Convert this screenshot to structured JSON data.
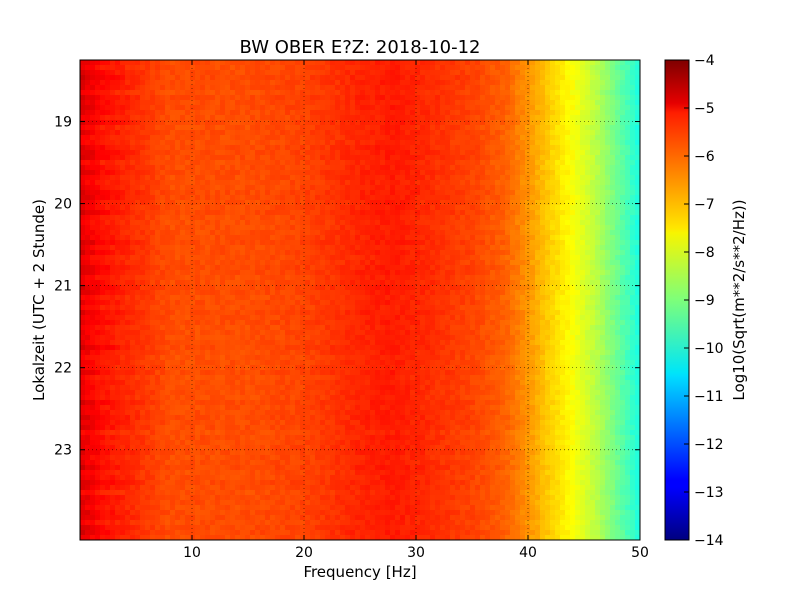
{
  "chart_data": {
    "type": "heatmap",
    "title": "BW OBER E?Z: 2018-10-12",
    "xlabel": "Frequency [Hz]",
    "ylabel": "Lokalzeit (UTC + 2 Stunde)",
    "xlim": [
      0,
      50
    ],
    "ylim": [
      18.25,
      24.1
    ],
    "y_inverted": true,
    "x_ticks": [
      10,
      20,
      30,
      40,
      50
    ],
    "x_tick_labels": [
      "10",
      "20",
      "30",
      "40",
      "50"
    ],
    "y_ticks": [
      19,
      20,
      21,
      22,
      23
    ],
    "y_tick_labels": [
      "19",
      "20",
      "21",
      "22",
      "23"
    ],
    "grid": true,
    "colormap": "jet",
    "colorbar": {
      "label": "Log10(Sqrt(m**2/s**2/Hz))",
      "range": [
        -14,
        -4
      ],
      "ticks": [
        -4,
        -5,
        -6,
        -7,
        -8,
        -9,
        -10,
        -11,
        -12,
        -13,
        -14
      ],
      "tick_labels": [
        "−4",
        "−5",
        "−6",
        "−7",
        "−8",
        "−9",
        "−10",
        "−11",
        "−12",
        "−13",
        "−14"
      ]
    },
    "spectrum_profile": {
      "frequency_hz": [
        0,
        2,
        5,
        8,
        10,
        15,
        20,
        25,
        28,
        30,
        35,
        38,
        40,
        42,
        44,
        46,
        48,
        50
      ],
      "log10_amplitude": [
        -5.0,
        -5.4,
        -5.7,
        -6.0,
        -6.0,
        -6.0,
        -5.9,
        -5.6,
        -5.5,
        -5.6,
        -5.9,
        -6.2,
        -6.7,
        -7.3,
        -7.8,
        -8.4,
        -9.2,
        -10.0
      ]
    }
  }
}
